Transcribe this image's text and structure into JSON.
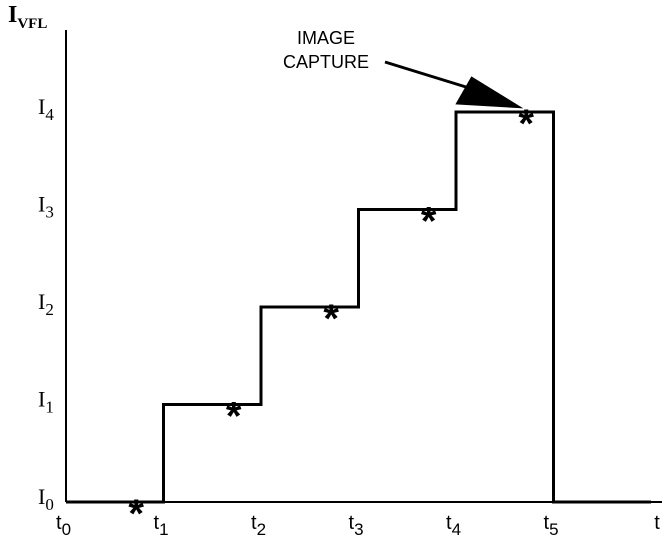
{
  "chart_data": {
    "type": "line",
    "title": "",
    "xlabel": "t",
    "ylabel": "I",
    "ylabel_sub": "VFL",
    "x_ticks": [
      {
        "main": "t",
        "sub": "0"
      },
      {
        "main": "t",
        "sub": "1"
      },
      {
        "main": "t",
        "sub": "2"
      },
      {
        "main": "t",
        "sub": "3"
      },
      {
        "main": "t",
        "sub": "4"
      },
      {
        "main": "t",
        "sub": "5"
      }
    ],
    "y_ticks": [
      {
        "main": "I",
        "sub": "0"
      },
      {
        "main": "I",
        "sub": "1"
      },
      {
        "main": "I",
        "sub": "2"
      },
      {
        "main": "I",
        "sub": "3"
      },
      {
        "main": "I",
        "sub": "4"
      }
    ],
    "series": [
      {
        "x": [
          0,
          1,
          1,
          2,
          2,
          3,
          3,
          4,
          4,
          5,
          5,
          6
        ],
        "y": [
          0,
          0,
          1,
          1,
          2,
          2,
          3,
          3,
          4,
          4,
          0,
          0
        ]
      }
    ],
    "markers": [
      {
        "x": 0.72,
        "y": 0,
        "symbol": "*"
      },
      {
        "x": 1.72,
        "y": 1,
        "symbol": "*"
      },
      {
        "x": 2.72,
        "y": 2,
        "symbol": "*"
      },
      {
        "x": 3.72,
        "y": 3,
        "symbol": "*"
      },
      {
        "x": 4.72,
        "y": 4,
        "symbol": "*"
      }
    ],
    "annotation": {
      "lines": [
        "IMAGE",
        "CAPTURE"
      ],
      "target_x": 4.65,
      "target_y": 4.15
    },
    "xlim": [
      0,
      6
    ],
    "ylim": [
      0,
      4
    ],
    "grid": false,
    "legend": "none"
  }
}
